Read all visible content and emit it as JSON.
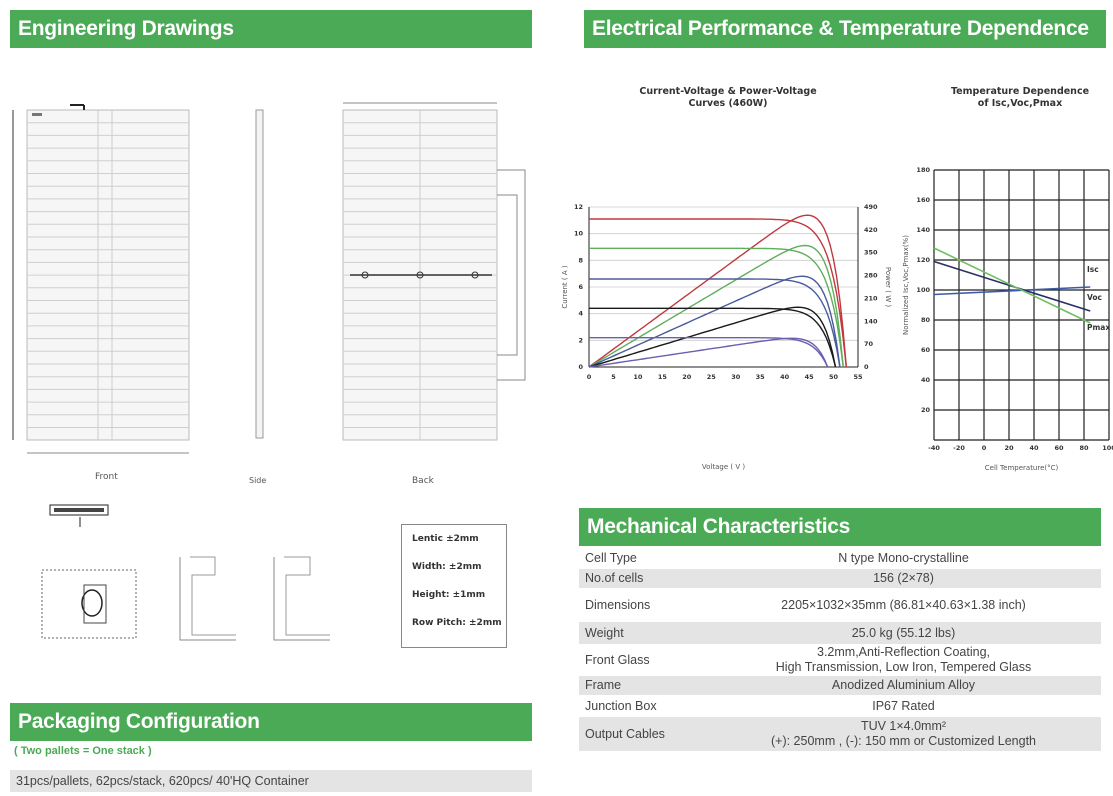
{
  "sections": {
    "engineering": "Engineering Drawings",
    "electrical": "Electrical Performance & Temperature Dependence",
    "mechanical": "Mechanical Characteristics",
    "packaging": "Packaging Configuration"
  },
  "drawing": {
    "front_label": "Front",
    "side_label": "Side",
    "back_label": "Back",
    "tolerances": [
      "Lentic ±2mm",
      "Width: ±2mm",
      "Height: ±1mm",
      "Row Pitch: ±2mm"
    ]
  },
  "iv_chart": {
    "title_line1": "Current-Voltage & Power-Voltage",
    "title_line2": "Curves (460W)",
    "xlabel": "Voltage ( V )",
    "ylabel_left": "Current ( A )",
    "ylabel_right": "Power ( W )",
    "x_ticks": [
      "0",
      "5",
      "10",
      "15",
      "20",
      "25",
      "30",
      "35",
      "40",
      "45",
      "50",
      "55"
    ],
    "y_left_ticks": [
      "0",
      "2",
      "4",
      "6",
      "8",
      "10",
      "12"
    ],
    "y_right_ticks": [
      "0",
      "70",
      "140",
      "210",
      "280",
      "350",
      "420",
      "490"
    ]
  },
  "temp_chart": {
    "title_line1": "Temperature Dependence",
    "title_line2": "of Isc,Voc,Pmax",
    "xlabel": "Cell Temperature(°C)",
    "ylabel": "Normalized Isc,Voc,Pmax(%)",
    "x_ticks": [
      "-40",
      "-20",
      "0",
      "20",
      "40",
      "60",
      "80",
      "100"
    ],
    "y_ticks": [
      "20",
      "40",
      "60",
      "80",
      "100",
      "120",
      "140",
      "160",
      "180"
    ],
    "series": [
      {
        "name": "Isc",
        "color": "#3d5aa8"
      },
      {
        "name": "Voc",
        "color": "#2a2f66"
      },
      {
        "name": "Pmax",
        "color": "#6fbf63"
      }
    ]
  },
  "mechanical": [
    {
      "key": "Cell Type",
      "value": "N type Mono-crystalline"
    },
    {
      "key": "No.of cells",
      "value": "156 (2×78)"
    },
    {
      "key": "Dimensions",
      "value": "2205×1032×35mm (86.81×40.63×1.38 inch)"
    },
    {
      "key": "Weight",
      "value": "25.0 kg (55.12 lbs)"
    },
    {
      "key": "Front Glass",
      "value": "3.2mm,Anti-Reflection Coating,",
      "value2": "High Transmission, Low Iron, Tempered Glass"
    },
    {
      "key": "Frame",
      "value": "Anodized Aluminium Alloy"
    },
    {
      "key": "Junction Box",
      "value": "IP67 Rated"
    },
    {
      "key": "Output Cables",
      "value": "TUV  1×4.0mm²",
      "value2": "(+): 250mm , (-): 150 mm or Customized Length"
    }
  ],
  "packaging": {
    "note": "( Two pallets = One stack )",
    "line": "31pcs/pallets, 62pcs/stack, 620pcs/ 40'HQ Container"
  },
  "chart_data": [
    {
      "type": "line",
      "title": "Current-Voltage & Power-Voltage Curves (460W)",
      "xlabel": "Voltage ( V )",
      "ylabel": "Current ( A )",
      "y2label": "Power ( W )",
      "xlim": [
        0,
        55
      ],
      "ylim": [
        0,
        12
      ],
      "y2lim": [
        0,
        490
      ],
      "series": [
        {
          "kind": "iv",
          "isc": 11.1,
          "voc": 52.6,
          "color": "#c0393e"
        },
        {
          "kind": "iv",
          "isc": 8.9,
          "voc": 52.0,
          "color": "#5fae5c"
        },
        {
          "kind": "iv",
          "isc": 6.6,
          "voc": 51.3,
          "color": "#4a5b9c"
        },
        {
          "kind": "iv",
          "isc": 4.4,
          "voc": 50.4,
          "color": "#1a1a1a"
        },
        {
          "kind": "iv",
          "isc": 2.2,
          "voc": 48.8,
          "color": "#6a5fb0"
        },
        {
          "kind": "pv",
          "pmax": 465,
          "color": "#c0393e"
        },
        {
          "kind": "pv",
          "pmax": 372,
          "color": "#5fae5c"
        },
        {
          "kind": "pv",
          "pmax": 278,
          "color": "#4a5b9c"
        },
        {
          "kind": "pv",
          "pmax": 183,
          "color": "#1a1a1a"
        },
        {
          "kind": "pv",
          "pmax": 88,
          "color": "#6a5fb0"
        }
      ]
    },
    {
      "type": "line",
      "title": "Temperature Dependence of Isc,Voc,Pmax",
      "xlabel": "Cell Temperature(°C)",
      "ylabel": "Normalized Isc,Voc,Pmax(%)",
      "xlim": [
        -40,
        100
      ],
      "ylim": [
        0,
        180
      ],
      "series": [
        {
          "name": "Isc",
          "x": [
            -40,
            85
          ],
          "y": [
            97,
            102
          ]
        },
        {
          "name": "Voc",
          "x": [
            -40,
            85
          ],
          "y": [
            119,
            86
          ]
        },
        {
          "name": "Pmax",
          "x": [
            -40,
            85
          ],
          "y": [
            128,
            78
          ]
        }
      ]
    }
  ]
}
